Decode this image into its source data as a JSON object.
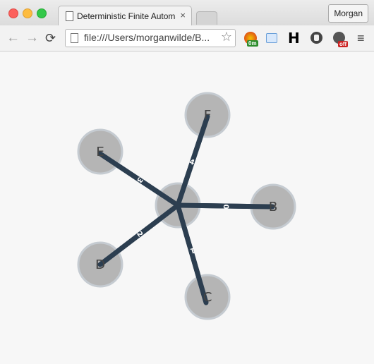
{
  "window": {
    "tab_title": "Deterministic Finite Automa",
    "tab_close": "×",
    "profile": "Morgan"
  },
  "toolbar": {
    "back": "←",
    "forward": "→",
    "reload": "⟳",
    "url": "file:///Users/morganwilde/B...",
    "star": "☆",
    "ext1_badge": "0m",
    "ext3_label": "H",
    "ext5_badge": "off",
    "menu": "≡"
  },
  "graph": {
    "colors": {
      "edge": "#2c3e50",
      "node_fill": "#b5b5b5",
      "node_stroke": "#c5cbd1",
      "marker": "#e33"
    },
    "nodes": [
      {
        "id": "center",
        "label": ""
      },
      {
        "id": "B",
        "label": "B"
      },
      {
        "id": "C",
        "label": "C"
      },
      {
        "id": "D",
        "label": "D"
      },
      {
        "id": "E",
        "label": "E"
      },
      {
        "id": "F",
        "label": "F"
      }
    ],
    "edges": [
      {
        "to": "B",
        "label": "0"
      },
      {
        "to": "C",
        "label": "1"
      },
      {
        "to": "D",
        "label": "2"
      },
      {
        "to": "E",
        "label": "3"
      },
      {
        "to": "F",
        "label": "4"
      }
    ]
  }
}
